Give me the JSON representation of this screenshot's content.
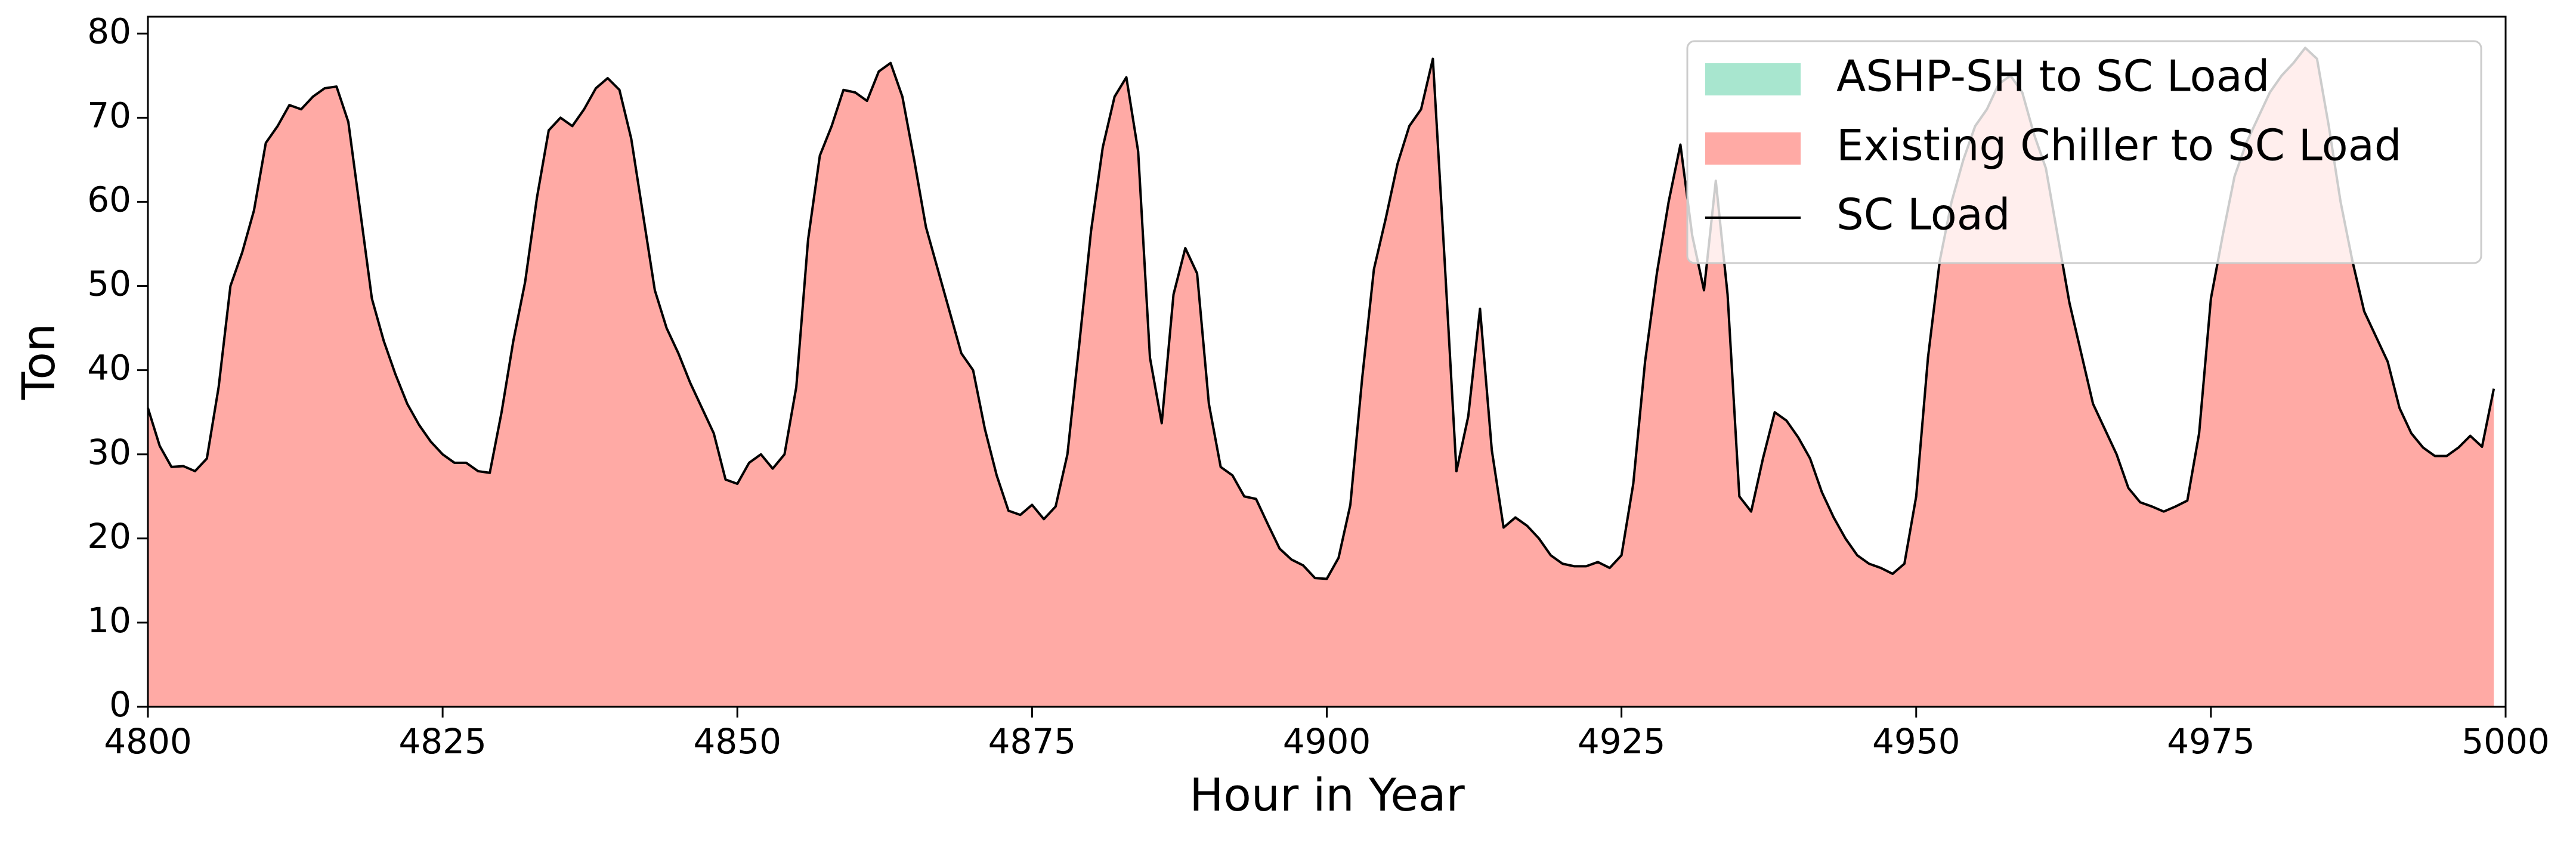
{
  "chart_data": {
    "type": "stacked_area",
    "xlabel": "Hour in Year",
    "ylabel": "Ton",
    "xlim": [
      4800,
      5000
    ],
    "ylim": [
      0,
      82
    ],
    "xticks": [
      4800,
      4825,
      4850,
      4875,
      4900,
      4925,
      4950,
      4975,
      5000
    ],
    "yticks": [
      0,
      10,
      20,
      30,
      40,
      50,
      60,
      70,
      80
    ],
    "legend": "upper right",
    "x": [
      4800,
      4801,
      4802,
      4803,
      4804,
      4805,
      4806,
      4807,
      4808,
      4809,
      4810,
      4811,
      4812,
      4813,
      4814,
      4815,
      4816,
      4817,
      4818,
      4819,
      4820,
      4821,
      4822,
      4823,
      4824,
      4825,
      4826,
      4827,
      4828,
      4829,
      4830,
      4831,
      4832,
      4833,
      4834,
      4835,
      4836,
      4837,
      4838,
      4839,
      4840,
      4841,
      4842,
      4843,
      4844,
      4845,
      4846,
      4847,
      4848,
      4849,
      4850,
      4851,
      4852,
      4853,
      4854,
      4855,
      4856,
      4857,
      4858,
      4859,
      4860,
      4861,
      4862,
      4863,
      4864,
      4865,
      4866,
      4867,
      4868,
      4869,
      4870,
      4871,
      4872,
      4873,
      4874,
      4875,
      4876,
      4877,
      4878,
      4879,
      4880,
      4881,
      4882,
      4883,
      4884,
      4885,
      4886,
      4887,
      4888,
      4889,
      4890,
      4891,
      4892,
      4893,
      4894,
      4895,
      4896,
      4897,
      4898,
      4899,
      4900,
      4901,
      4902,
      4903,
      4904,
      4905,
      4906,
      4907,
      4908,
      4909,
      4910,
      4911,
      4912,
      4913,
      4914,
      4915,
      4916,
      4917,
      4918,
      4919,
      4920,
      4921,
      4922,
      4923,
      4924,
      4925,
      4926,
      4927,
      4928,
      4929,
      4930,
      4931,
      4932,
      4933,
      4934,
      4935,
      4936,
      4937,
      4938,
      4939,
      4940,
      4941,
      4942,
      4943,
      4944,
      4945,
      4946,
      4947,
      4948,
      4949,
      4950,
      4951,
      4952,
      4953,
      4954,
      4955,
      4956,
      4957,
      4958,
      4959,
      4960,
      4961,
      4962,
      4963,
      4964,
      4965,
      4966,
      4967,
      4968,
      4969,
      4970,
      4971,
      4972,
      4973,
      4974,
      4975,
      4976,
      4977,
      4978,
      4979,
      4980,
      4981,
      4982,
      4983,
      4984,
      4985,
      4986,
      4987,
      4988,
      4989,
      4990,
      4991,
      4992,
      4993,
      4994,
      4995,
      4996,
      4997,
      4998,
      4999
    ],
    "series": [
      {
        "name": "ASHP-SH to SC Load",
        "color": "#a8e6cf",
        "kind": "area",
        "values": [
          0,
          0,
          0,
          0,
          0,
          0,
          0,
          0,
          0,
          0,
          0,
          0,
          0,
          0,
          0,
          0,
          0,
          0,
          0,
          0,
          0,
          0,
          0,
          0,
          0,
          0,
          0,
          0,
          0,
          0,
          0,
          0,
          0,
          0,
          0,
          0,
          0,
          0,
          0,
          0,
          0,
          0,
          0,
          0,
          0,
          0,
          0,
          0,
          0,
          0,
          0,
          0,
          0,
          0,
          0,
          0,
          0,
          0,
          0,
          0,
          0,
          0,
          0,
          0,
          0,
          0,
          0,
          0,
          0,
          0,
          0,
          0,
          0,
          0,
          0,
          0,
          0,
          0,
          0,
          0,
          0,
          0,
          0,
          0,
          0,
          0,
          0,
          0,
          0,
          0,
          0,
          0,
          0,
          0,
          0,
          0,
          0,
          0,
          0,
          0,
          0,
          0,
          0,
          0,
          0,
          0,
          0,
          0,
          0,
          0,
          0,
          0,
          0,
          0,
          0,
          0,
          0,
          0,
          0,
          0,
          0,
          0,
          0,
          0,
          0,
          0,
          0,
          0,
          0,
          0,
          0,
          0,
          0,
          0,
          0,
          0,
          0,
          0,
          0,
          0,
          0,
          0,
          0,
          0,
          0,
          0,
          0,
          0,
          0,
          0,
          0,
          0,
          0,
          0,
          0,
          0,
          0,
          0,
          0,
          0,
          0,
          0,
          0,
          0,
          0,
          0,
          0,
          0,
          0,
          0,
          0,
          0,
          0,
          0,
          0,
          0,
          0,
          0,
          0,
          0,
          0,
          0,
          0,
          0,
          0,
          0,
          0,
          0,
          0,
          0,
          0,
          0,
          0,
          0,
          0,
          0,
          0,
          0,
          0,
          0
        ]
      },
      {
        "name": "Existing Chiller to SC Load",
        "color": "#ffaaa5",
        "kind": "area",
        "values": [
          35.5,
          31,
          28.5,
          28.6,
          28,
          29.5,
          38,
          50,
          54,
          59,
          67,
          69,
          71.5,
          71,
          72.5,
          73.5,
          73.7,
          69.5,
          59,
          48.5,
          43.5,
          39.5,
          36,
          33.5,
          31.5,
          30,
          29,
          29,
          28,
          27.8,
          35,
          43.5,
          50.5,
          60.5,
          68.5,
          70,
          69,
          71,
          73.5,
          74.7,
          73.3,
          67.5,
          58.5,
          49.5,
          45,
          42,
          38.5,
          35.5,
          32.5,
          27,
          26.5,
          29,
          30,
          28.3,
          30,
          38,
          55.5,
          65.5,
          69,
          73.3,
          73,
          72,
          75.5,
          76.5,
          72.5,
          65,
          57,
          52,
          47,
          42,
          40,
          33,
          27.5,
          23.3,
          22.8,
          24,
          22.3,
          23.8,
          30,
          43,
          56.5,
          66.5,
          72.5,
          74.8,
          66,
          41.5,
          33.7,
          49,
          54.5,
          51.5,
          36,
          28.5,
          27.5,
          25,
          24.7,
          21.7,
          18.8,
          17.5,
          16.8,
          15.3,
          15.2,
          17.7,
          24,
          39,
          52,
          58,
          64.5,
          69,
          71,
          77,
          53,
          28,
          34.5,
          47.3,
          30.5,
          21.3,
          22.5,
          21.5,
          20,
          18,
          17,
          16.7,
          16.7,
          17.2,
          16.5,
          18,
          26.5,
          41,
          51.5,
          60,
          66.8,
          56,
          49.5,
          62.5,
          49,
          25,
          23.2,
          29.5,
          35,
          34,
          32,
          29.5,
          25.5,
          22.5,
          20,
          18,
          17,
          16.5,
          15.8,
          17,
          25,
          41.5,
          53,
          60,
          65,
          69,
          71,
          74,
          75,
          73,
          68,
          64,
          56,
          48,
          42,
          36,
          33,
          30,
          26,
          24.3,
          23.8,
          23.2,
          23.8,
          24.5,
          32.5,
          48.5,
          56,
          63,
          67,
          70,
          73,
          75,
          76.5,
          78.3,
          77,
          69,
          60,
          53,
          47,
          44,
          41,
          35.5,
          32.5,
          30.8,
          29.8,
          29.8,
          30.8,
          32.2,
          30.9,
          37.8
        ]
      },
      {
        "name": "SC Load",
        "color": "#000000",
        "kind": "line",
        "values": [
          35.5,
          31,
          28.5,
          28.6,
          28,
          29.5,
          38,
          50,
          54,
          59,
          67,
          69,
          71.5,
          71,
          72.5,
          73.5,
          73.7,
          69.5,
          59,
          48.5,
          43.5,
          39.5,
          36,
          33.5,
          31.5,
          30,
          29,
          29,
          28,
          27.8,
          35,
          43.5,
          50.5,
          60.5,
          68.5,
          70,
          69,
          71,
          73.5,
          74.7,
          73.3,
          67.5,
          58.5,
          49.5,
          45,
          42,
          38.5,
          35.5,
          32.5,
          27,
          26.5,
          29,
          30,
          28.3,
          30,
          38,
          55.5,
          65.5,
          69,
          73.3,
          73,
          72,
          75.5,
          76.5,
          72.5,
          65,
          57,
          52,
          47,
          42,
          40,
          33,
          27.5,
          23.3,
          22.8,
          24,
          22.3,
          23.8,
          30,
          43,
          56.5,
          66.5,
          72.5,
          74.8,
          66,
          41.5,
          33.7,
          49,
          54.5,
          51.5,
          36,
          28.5,
          27.5,
          25,
          24.7,
          21.7,
          18.8,
          17.5,
          16.8,
          15.3,
          15.2,
          17.7,
          24,
          39,
          52,
          58,
          64.5,
          69,
          71,
          77,
          53,
          28,
          34.5,
          47.3,
          30.5,
          21.3,
          22.5,
          21.5,
          20,
          18,
          17,
          16.7,
          16.7,
          17.2,
          16.5,
          18,
          26.5,
          41,
          51.5,
          60,
          66.8,
          56,
          49.5,
          62.5,
          49,
          25,
          23.2,
          29.5,
          35,
          34,
          32,
          29.5,
          25.5,
          22.5,
          20,
          18,
          17,
          16.5,
          15.8,
          17,
          25,
          41.5,
          53,
          60,
          65,
          69,
          71,
          74,
          75,
          73,
          68,
          64,
          56,
          48,
          42,
          36,
          33,
          30,
          26,
          24.3,
          23.8,
          23.2,
          23.8,
          24.5,
          32.5,
          48.5,
          56,
          63,
          67,
          70,
          73,
          75,
          76.5,
          78.3,
          77,
          69,
          60,
          53,
          47,
          44,
          41,
          35.5,
          32.5,
          30.8,
          29.8,
          29.8,
          30.8,
          32.2,
          30.9,
          37.8
        ]
      }
    ]
  }
}
